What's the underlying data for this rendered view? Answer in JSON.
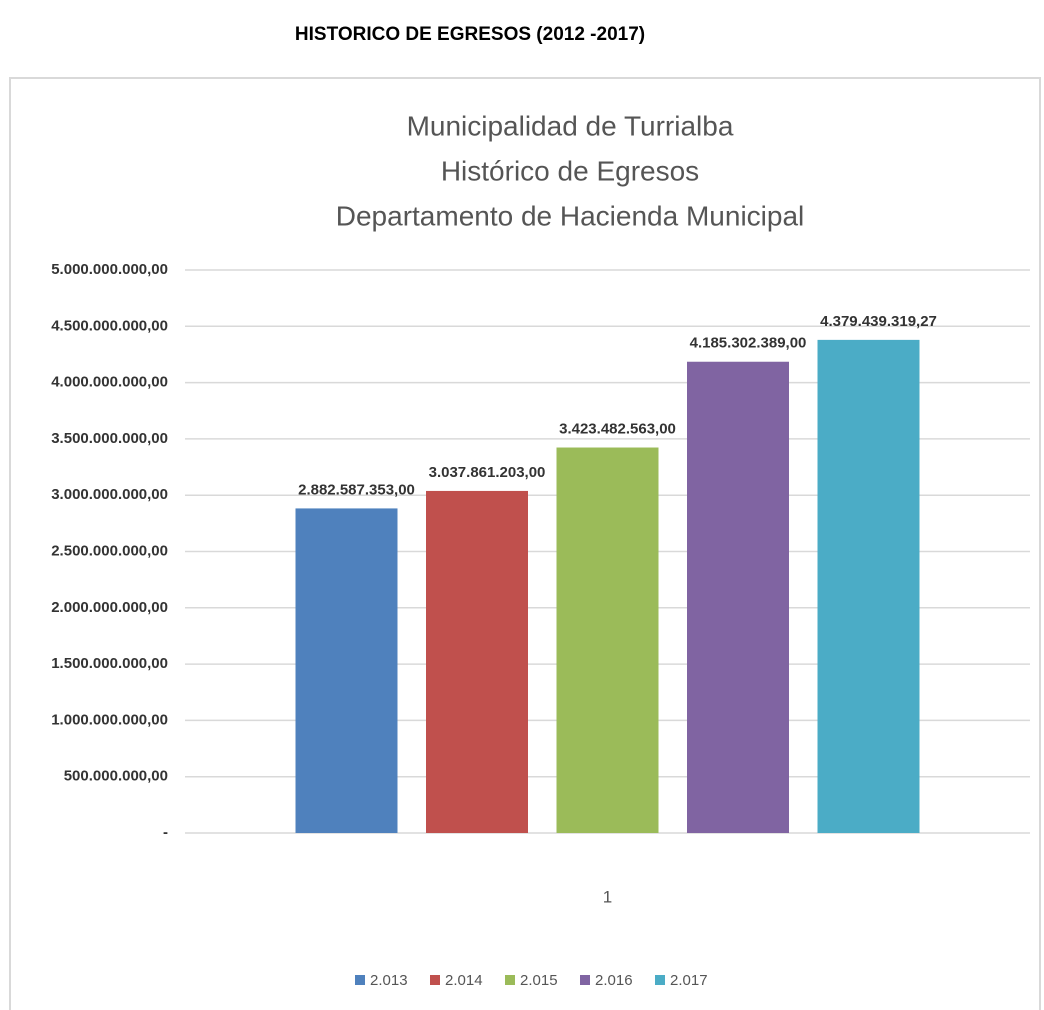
{
  "page_title": "HISTORICO DE EGRESOS (2012 -2017)",
  "chart_data": {
    "type": "bar",
    "title": [
      "Municipalidad de Turrialba",
      "Histórico de Egresos",
      "Departamento de Hacienda Municipal"
    ],
    "categories": [
      "1"
    ],
    "series": [
      {
        "name": "2.013",
        "color": "#4f81bd",
        "values": [
          2882587353
        ],
        "value_labels": [
          "2.882.587.353,00"
        ]
      },
      {
        "name": "2.014",
        "color": "#c0504d",
        "values": [
          3037861203
        ],
        "value_labels": [
          "3.037.861.203,00"
        ]
      },
      {
        "name": "2.015",
        "color": "#9bbb59",
        "values": [
          3423482563
        ],
        "value_labels": [
          "3.423.482.563,00"
        ]
      },
      {
        "name": "2.016",
        "color": "#8064a2",
        "values": [
          4185302389
        ],
        "value_labels": [
          "4.185.302.389,00"
        ]
      },
      {
        "name": "2.017",
        "color": "#4bacc6",
        "values": [
          4379439319.27
        ],
        "value_labels": [
          "4.379.439.319,27"
        ]
      }
    ],
    "ylim": [
      0,
      5000000000
    ],
    "yticks": [
      {
        "value": 0,
        "label": "-"
      },
      {
        "value": 500000000,
        "label": "500.000.000,00"
      },
      {
        "value": 1000000000,
        "label": "1.000.000.000,00"
      },
      {
        "value": 1500000000,
        "label": "1.500.000.000,00"
      },
      {
        "value": 2000000000,
        "label": "2.000.000.000,00"
      },
      {
        "value": 2500000000,
        "label": "2.500.000.000,00"
      },
      {
        "value": 3000000000,
        "label": "3.000.000.000,00"
      },
      {
        "value": 3500000000,
        "label": "3.500.000.000,00"
      },
      {
        "value": 4000000000,
        "label": "4.000.000.000,00"
      },
      {
        "value": 4500000000,
        "label": "4.500.000.000,00"
      },
      {
        "value": 5000000000,
        "label": "5.000.000.000,00"
      }
    ],
    "grid": true,
    "legend": "bottom"
  }
}
